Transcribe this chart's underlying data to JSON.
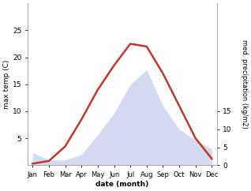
{
  "months": [
    "Jan",
    "Feb",
    "Mar",
    "Apr",
    "May",
    "Jun",
    "Jul",
    "Aug",
    "Sep",
    "Oct",
    "Nov",
    "Dec"
  ],
  "month_positions": [
    0,
    1,
    2,
    3,
    4,
    5,
    6,
    7,
    8,
    9,
    10,
    11
  ],
  "temperature": [
    0.3,
    0.8,
    3.5,
    8.5,
    14.0,
    18.5,
    22.5,
    22.0,
    17.0,
    11.0,
    5.0,
    1.2
  ],
  "precipitation": [
    3.5,
    1.5,
    1.5,
    3.0,
    8.5,
    14.5,
    22.5,
    26.5,
    16.5,
    10.0,
    7.0,
    4.5
  ],
  "temp_ylim": [
    0,
    30
  ],
  "precip_ylim": [
    0,
    45
  ],
  "temp_yticks": [
    5,
    10,
    15,
    20,
    25
  ],
  "precip_yticks": [
    0,
    5,
    10,
    15
  ],
  "temp_color": "#c0392b",
  "precip_color": "#b0bce8",
  "ylabel_left": "max temp (C)",
  "ylabel_right": "med. precipitation (kg/m2)",
  "xlabel": "date (month)",
  "bg_color": "#ffffff"
}
